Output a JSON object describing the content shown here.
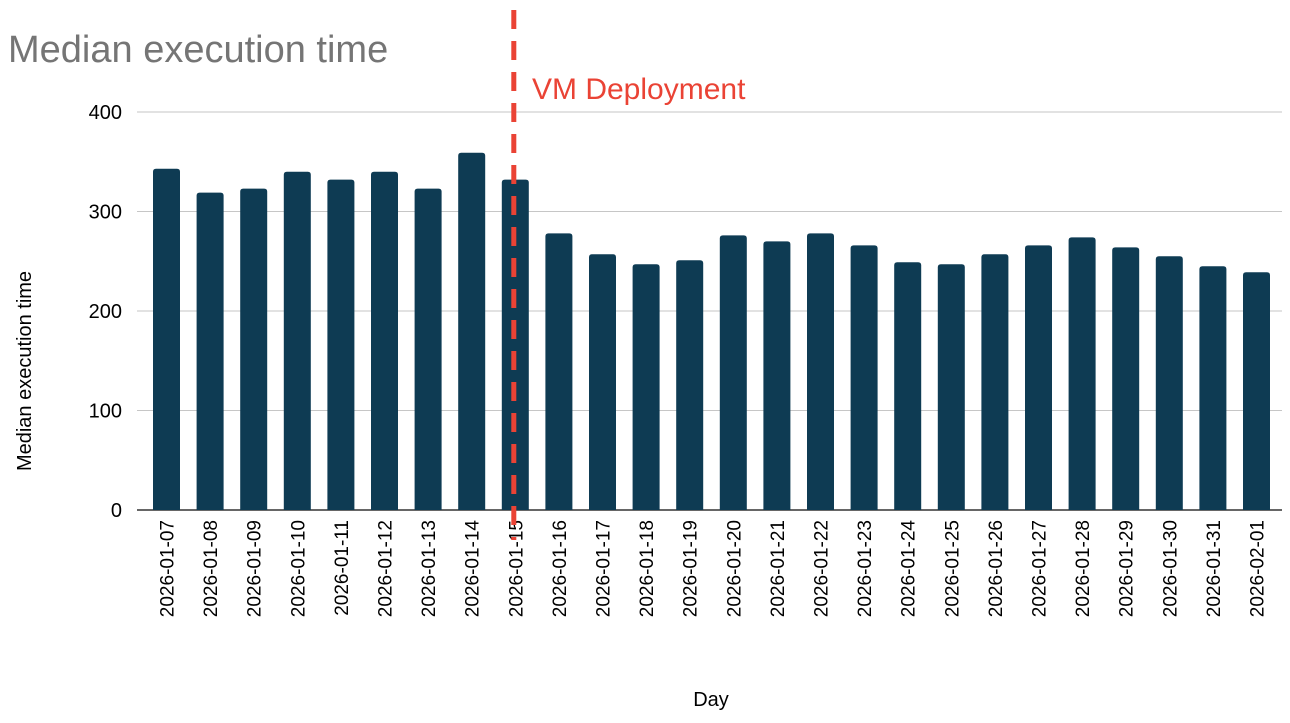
{
  "chart_data": {
    "type": "bar",
    "title": "Median execution time",
    "xlabel": "Day",
    "ylabel": "Median execution time",
    "ylim": [
      0,
      400
    ],
    "yticks": [
      "0",
      "100",
      "200",
      "300",
      "400"
    ],
    "grid": true,
    "categories": [
      "2026-01-07",
      "2026-01-08",
      "2026-01-09",
      "2026-01-10",
      "2026-01-11",
      "2026-01-12",
      "2026-01-13",
      "2026-01-14",
      "2026-01-15",
      "2026-01-16",
      "2026-01-17",
      "2026-01-18",
      "2026-01-19",
      "2026-01-20",
      "2026-01-21",
      "2026-01-22",
      "2026-01-23",
      "2026-01-24",
      "2026-01-25",
      "2026-01-26",
      "2026-01-27",
      "2026-01-28",
      "2026-01-29",
      "2026-01-30",
      "2026-01-31",
      "2026-02-01"
    ],
    "values": [
      343,
      319,
      323,
      340,
      332,
      340,
      323,
      359,
      332,
      278,
      257,
      247,
      251,
      276,
      270,
      278,
      266,
      249,
      247,
      257,
      266,
      274,
      264,
      255,
      245,
      239
    ],
    "bar_color": "#0e3b53",
    "annotation": {
      "label": "VM Deployment",
      "category": "2026-01-15",
      "color": "#ea4335"
    }
  }
}
